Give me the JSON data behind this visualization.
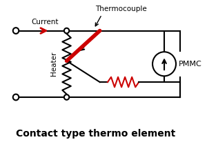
{
  "title": "Contact type thermo element",
  "title_fontsize": 10,
  "title_fontweight": "bold",
  "bg_color": "#ffffff",
  "line_color": "#000000",
  "thermocouple_color": "#cc0000",
  "resistor_color": "#cc0000",
  "arrow_color": "#cc0000",
  "label_current": "Current",
  "label_thermocouple": "Thermocouple",
  "label_heater": "Heater",
  "label_pmmc": "PMMC",
  "xlim": [
    0,
    10
  ],
  "ylim": [
    0,
    7
  ]
}
